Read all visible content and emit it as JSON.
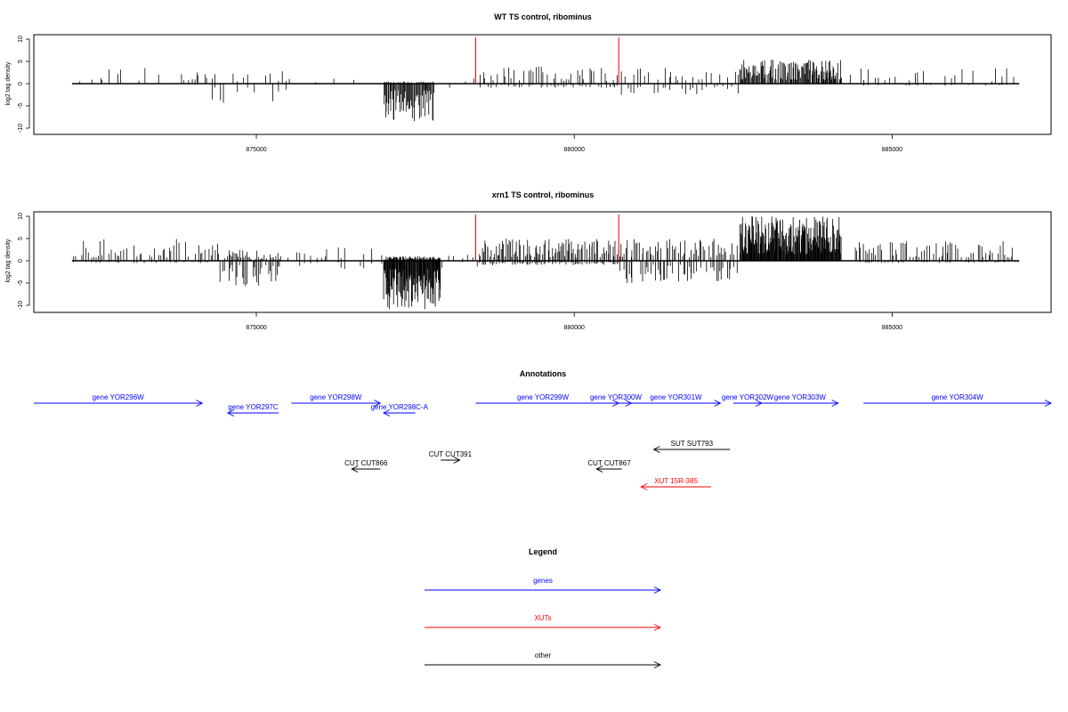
{
  "chart_data": [
    {
      "type": "bar",
      "title": "WT TS control, ribominus",
      "xlabel": "",
      "ylabel": "log2 tag density",
      "xlim": [
        871500,
        887500
      ],
      "ylim": [
        -11,
        11
      ],
      "xticks": [
        875000,
        880000,
        885000
      ],
      "xtick_labels": [
        "875000",
        "880000",
        "885000"
      ],
      "yticks": [
        -10,
        -5,
        0,
        5,
        10
      ],
      "ytick_labels": [
        "-10",
        "-5",
        "0",
        "5",
        "10"
      ],
      "baseline": [
        872100,
        887000
      ],
      "markers": [
        {
          "x": 878450,
          "color": "#ff0000"
        },
        {
          "x": 880700,
          "color": "#ff0000"
        }
      ],
      "segments": [
        {
          "start": 872100,
          "end": 874100,
          "n": 30,
          "pos_max": 3.5,
          "neg_max": 0,
          "fill": 0.45
        },
        {
          "start": 874000,
          "end": 875500,
          "n": 22,
          "pos_max": 3.0,
          "neg_max": 5.5,
          "fill": 0.6
        },
        {
          "start": 875500,
          "end": 877000,
          "n": 8,
          "pos_max": 1.5,
          "neg_max": 1.0,
          "fill": 0.3
        },
        {
          "start": 877000,
          "end": 877800,
          "n": 60,
          "pos_max": 0.5,
          "neg_max": 8.5,
          "fill": 1.0
        },
        {
          "start": 877800,
          "end": 878500,
          "n": 6,
          "pos_max": 1.5,
          "neg_max": 1.0,
          "fill": 0.3
        },
        {
          "start": 878500,
          "end": 880700,
          "n": 55,
          "pos_max": 4.0,
          "neg_max": 1.0,
          "fill": 0.75
        },
        {
          "start": 880700,
          "end": 882600,
          "n": 35,
          "pos_max": 3.5,
          "neg_max": 3.0,
          "fill": 0.6
        },
        {
          "start": 882600,
          "end": 884200,
          "n": 140,
          "pos_max": 5.5,
          "neg_max": 0,
          "fill": 0.9
        },
        {
          "start": 884200,
          "end": 887000,
          "n": 40,
          "pos_max": 3.5,
          "neg_max": 0.5,
          "fill": 0.6
        }
      ]
    },
    {
      "type": "bar",
      "title": "xrn1 TS control, ribominus",
      "xlabel": "",
      "ylabel": "log2 tag density",
      "xlim": [
        871500,
        887500
      ],
      "ylim": [
        -11,
        11
      ],
      "xticks": [
        875000,
        880000,
        885000
      ],
      "xtick_labels": [
        "875000",
        "880000",
        "885000"
      ],
      "yticks": [
        -10,
        -5,
        0,
        5,
        10
      ],
      "ytick_labels": [
        "-10",
        "-5",
        "0",
        "5",
        "10"
      ],
      "baseline": [
        872100,
        887000
      ],
      "markers": [
        {
          "x": 878450,
          "color": "#ff0000"
        },
        {
          "x": 880700,
          "color": "#ff0000"
        }
      ],
      "segments": [
        {
          "start": 872100,
          "end": 874400,
          "n": 70,
          "pos_max": 5.0,
          "neg_max": 0.5,
          "fill": 0.7
        },
        {
          "start": 874400,
          "end": 875400,
          "n": 45,
          "pos_max": 2.5,
          "neg_max": 6.0,
          "fill": 0.75
        },
        {
          "start": 875400,
          "end": 877000,
          "n": 25,
          "pos_max": 3.0,
          "neg_max": 2.0,
          "fill": 0.45
        },
        {
          "start": 877000,
          "end": 877900,
          "n": 110,
          "pos_max": 1.0,
          "neg_max": 11.0,
          "fill": 1.0
        },
        {
          "start": 877900,
          "end": 878500,
          "n": 8,
          "pos_max": 2.0,
          "neg_max": 2.0,
          "fill": 0.35
        },
        {
          "start": 878500,
          "end": 880700,
          "n": 110,
          "pos_max": 5.0,
          "neg_max": 1.0,
          "fill": 0.9
        },
        {
          "start": 880700,
          "end": 882600,
          "n": 75,
          "pos_max": 5.0,
          "neg_max": 5.0,
          "fill": 0.75
        },
        {
          "start": 882600,
          "end": 884200,
          "n": 200,
          "pos_max": 10.0,
          "neg_max": 0,
          "fill": 1.0
        },
        {
          "start": 884400,
          "end": 887000,
          "n": 90,
          "pos_max": 4.5,
          "neg_max": 0.5,
          "fill": 0.75
        }
      ]
    },
    {
      "type": "diagram",
      "title": "Annotations",
      "xlim": [
        871500,
        887500
      ],
      "features": [
        {
          "label": "gene YOR296W",
          "start": 871500,
          "end": 874150,
          "strand": "+",
          "row": 0,
          "color": "#0000ff"
        },
        {
          "label": "gene YOR297C",
          "start": 874550,
          "end": 875350,
          "strand": "-",
          "row": 1,
          "color": "#0000ff"
        },
        {
          "label": "gene YOR298W",
          "start": 875550,
          "end": 876950,
          "strand": "+",
          "row": 0,
          "color": "#0000ff"
        },
        {
          "label": "gene YOR298C-A",
          "start": 877000,
          "end": 877500,
          "strand": "-",
          "row": 1,
          "color": "#0000ff"
        },
        {
          "label": "gene YOR299W",
          "start": 878450,
          "end": 880700,
          "strand": "+",
          "row": 0,
          "color": "#0000ff"
        },
        {
          "label": "gene YOR300W",
          "start": 880450,
          "end": 880900,
          "strand": "+",
          "row": 0,
          "color": "#0000ff"
        },
        {
          "label": "gene YOR301W",
          "start": 880900,
          "end": 882300,
          "strand": "+",
          "row": 0,
          "color": "#0000ff"
        },
        {
          "label": "gene YOR302W",
          "start": 882500,
          "end": 882950,
          "strand": "+",
          "row": 0,
          "color": "#0000ff"
        },
        {
          "label": "gene YOR303W",
          "start": 882950,
          "end": 884150,
          "strand": "+",
          "row": 0,
          "color": "#0000ff"
        },
        {
          "label": "gene YOR304W",
          "start": 884550,
          "end": 887500,
          "strand": "+",
          "row": 0,
          "color": "#0000ff"
        },
        {
          "label": "SUT SUT793",
          "start": 881250,
          "end": 882450,
          "strand": "-",
          "row": 2,
          "color": "#000000"
        },
        {
          "label": "CUT CUT391",
          "start": 877900,
          "end": 878200,
          "strand": "+",
          "row": 3,
          "color": "#000000"
        },
        {
          "label": "CUT CUT866",
          "start": 876500,
          "end": 876950,
          "strand": "-",
          "row": 4,
          "color": "#000000"
        },
        {
          "label": "CUT CUT867",
          "start": 880350,
          "end": 880750,
          "strand": "-",
          "row": 4,
          "color": "#000000"
        },
        {
          "label": "XUT 15R-385",
          "start": 881050,
          "end": 882150,
          "strand": "-",
          "row": 5,
          "color": "#ff0000"
        }
      ]
    },
    {
      "type": "legend",
      "title": "Legend",
      "entries": [
        {
          "label": "genes",
          "color": "#0000ff"
        },
        {
          "label": "XUTs",
          "color": "#ff0000"
        },
        {
          "label": "other",
          "color": "#000000"
        }
      ]
    }
  ]
}
